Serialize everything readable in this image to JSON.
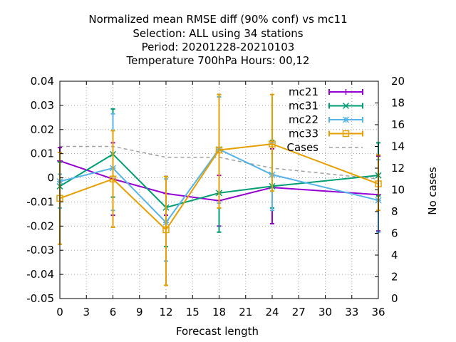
{
  "chart_data": {
    "type": "line",
    "title_lines": [
      "Normalized mean RMSE diff (90% conf) vs mc11",
      "Selection: ALL using    34 stations",
      "Period: 20201228-20210103",
      "Temperature 700hPa   Hours:  00,12"
    ],
    "xlabel": "Forecast length",
    "ylabel": "",
    "y2label": "No cases",
    "x_ticks": [
      "0",
      "3",
      "6",
      "9",
      "12",
      "15",
      "18",
      "21",
      "24",
      "27",
      "30",
      "33",
      "36"
    ],
    "y_ticks": [
      "0.04",
      "0.03",
      "0.02",
      "0.01",
      "0",
      "-0.01",
      "-0.02",
      "-0.03",
      "-0.04",
      "-0.05"
    ],
    "y2_ticks": [
      "20",
      "18",
      "16",
      "14",
      "12",
      "10",
      "8",
      "6",
      "4",
      "2",
      "0"
    ],
    "xlim": [
      0,
      36
    ],
    "ylim": [
      -0.05,
      0.04
    ],
    "y2lim": [
      0,
      20
    ],
    "grid": true,
    "legend_position": "top-right",
    "series": [
      {
        "name": "mc21",
        "color": "#9400d3",
        "marker": "plus",
        "x": [
          0,
          6,
          12,
          18,
          24,
          36
        ],
        "y": [
          0.007,
          -0.0005,
          -0.0065,
          -0.0095,
          -0.004,
          -0.007
        ],
        "err_low": [
          0.0015,
          -0.0155,
          -0.0155,
          -0.02,
          -0.019,
          -0.022
        ],
        "err_high": [
          0.0125,
          0.0145,
          0.0005,
          0.001,
          0.012,
          0.009
        ]
      },
      {
        "name": "mc31",
        "color": "#009e73",
        "marker": "x",
        "x": [
          0,
          6,
          12,
          18,
          24,
          36
        ],
        "y": [
          -0.0035,
          0.0098,
          -0.0123,
          -0.0063,
          -0.0035,
          0.001
        ],
        "err_low": [
          -0.0125,
          -0.008,
          -0.0285,
          -0.0225,
          -0.0125,
          -0.0075
        ],
        "err_high": [
          0.0065,
          0.0285,
          0.0005,
          0.0345,
          0.0155,
          0.0145
        ]
      },
      {
        "name": "mc22",
        "color": "#56b4e9",
        "marker": "asterisk",
        "x": [
          0,
          6,
          12,
          18,
          24,
          36
        ],
        "y": [
          -0.0015,
          0.004,
          -0.0185,
          0.0118,
          0.0013,
          -0.0093
        ],
        "err_low": [
          -0.0125,
          -0.0135,
          -0.0345,
          -0.0105,
          -0.0135,
          -0.0225
        ],
        "err_high": [
          0.0015,
          0.0265,
          -0.0005,
          0.0335,
          0.0145,
          0.0075
        ]
      },
      {
        "name": "mc33",
        "color": "#e69f00",
        "marker": "square",
        "x": [
          0,
          6,
          12,
          18,
          24,
          36
        ],
        "y": [
          -0.0085,
          -0.0005,
          -0.0215,
          0.0115,
          0.014,
          -0.0025
        ],
        "err_low": [
          -0.0275,
          -0.0205,
          -0.0445,
          -0.0125,
          -0.0055,
          -0.0135
        ],
        "err_high": [
          0.0105,
          0.0195,
          0.0005,
          0.0345,
          0.0345,
          0.0095
        ]
      },
      {
        "name": "Cases",
        "color": "#a0a0a0",
        "marker": "none",
        "dashed": true,
        "axis": "y2",
        "x": [
          0,
          6,
          12,
          18,
          24,
          36
        ],
        "y": [
          14,
          14,
          13,
          13,
          12,
          11
        ]
      }
    ]
  }
}
